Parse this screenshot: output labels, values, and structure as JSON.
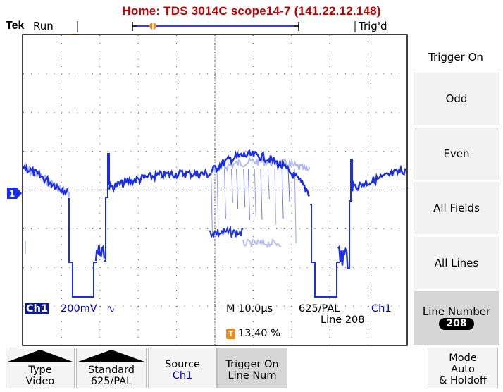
{
  "title": "Home:  TDS 3014C  scope14-7  (141.22.12.148)",
  "status": {
    "brand": "Tek",
    "acquisition": "Run",
    "trigger_state": "Trig'd",
    "trigger_marker": "T",
    "channel_marker": "1"
  },
  "readout": {
    "channel": "Ch1",
    "volts_per_div": "200mV",
    "coupling_symbol": "∿",
    "timebase": "M 10.0µs",
    "video_standard": "625/PAL",
    "trigger_source": "Ch1",
    "line_label": "Line 208",
    "trigger_position_marker": "T",
    "trigger_position": "13.40 %"
  },
  "side_menu": {
    "heading": "Trigger On",
    "items": [
      {
        "label": "Odd"
      },
      {
        "label": "Even"
      },
      {
        "label": "All Fields"
      },
      {
        "label": "All Lines"
      },
      {
        "label": "Line Number",
        "value": "208"
      }
    ]
  },
  "bottom_menu": {
    "type": {
      "label": "Type",
      "value": "Video"
    },
    "standard": {
      "label": "Standard",
      "value": "625/PAL"
    },
    "source": {
      "label": "Source",
      "value": "Ch1"
    },
    "trigger_on": {
      "label": "Trigger On",
      "value": "Line Num"
    },
    "mode": {
      "label": "Mode",
      "value": "Auto",
      "extra": "& Holdoff"
    }
  },
  "colors": {
    "title": "#c00000",
    "trace": "#1a2ee8",
    "trace_fade": "#9aa4f5",
    "trigger_marker": "#f08a1c",
    "readout_text": "#0000cc",
    "highlight_button": "#d6d6d6"
  }
}
